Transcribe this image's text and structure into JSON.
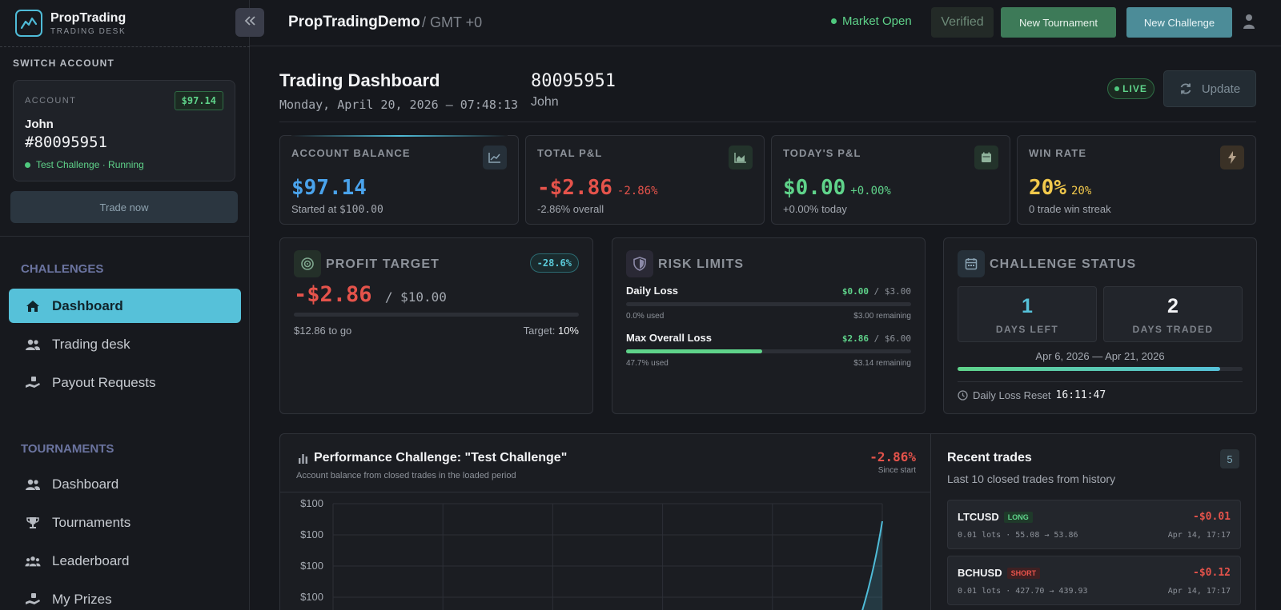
{
  "brand": {
    "name": "PropTrading",
    "subtitle": "TRADING DESK"
  },
  "sidebar": {
    "switch_label": "SWITCH ACCOUNT",
    "account": {
      "label": "ACCOUNT",
      "balance_badge": "$97.14",
      "name": "John",
      "id": "#80095951",
      "status": "Test Challenge · Running"
    },
    "trade_now": "Trade now",
    "challenges_label": "CHALLENGES",
    "challenges_items": [
      {
        "label": "Dashboard",
        "icon": "home-icon",
        "active": true
      },
      {
        "label": "Trading desk",
        "icon": "users-icon",
        "active": false
      },
      {
        "label": "Payout Requests",
        "icon": "payout-icon",
        "active": false
      }
    ],
    "tournaments_label": "TOURNAMENTS",
    "tournaments_items": [
      {
        "label": "Dashboard",
        "icon": "users-icon"
      },
      {
        "label": "Tournaments",
        "icon": "trophy-icon"
      },
      {
        "label": "Leaderboard",
        "icon": "group-icon"
      },
      {
        "label": "My Prizes",
        "icon": "prize-icon"
      }
    ]
  },
  "topbar": {
    "title": "PropTradingDemo",
    "timezone": "/ GMT +0",
    "market_status": "Market Open",
    "verified": "Verified",
    "new_tournament": "New Tournament",
    "new_challenge": "New Challenge"
  },
  "header": {
    "title": "Trading Dashboard",
    "datetime": "Monday, April 20, 2026 — 07:48:13",
    "account_id": "80095951",
    "account_name": "John",
    "live": "LIVE",
    "update": "Update"
  },
  "stats": [
    {
      "label": "ACCOUNT BALANCE",
      "value": "$97.14",
      "delta": "",
      "sub_prefix": "Started at ",
      "sub_value": "$100.00",
      "color": "#4aa3ec",
      "icon": "chart-up-icon"
    },
    {
      "label": "TOTAL P&L",
      "value": "-$2.86",
      "delta": "-2.86%",
      "sub_prefix": "",
      "sub_value": "-2.86% overall",
      "color": "#e5534b",
      "icon": "area-chart-icon"
    },
    {
      "label": "TODAY'S P&L",
      "value": "$0.00",
      "delta": "+0.00%",
      "sub_prefix": "",
      "sub_value": "+0.00% today",
      "color": "#5fd38a",
      "icon": "calendar-icon"
    },
    {
      "label": "WIN RATE",
      "value": "20%",
      "delta": "20%",
      "sub_prefix": "",
      "sub_value": "0 trade win streak",
      "color": "#f2c94c",
      "icon": "bolt-icon"
    }
  ],
  "profit_target": {
    "title": "PROFIT TARGET",
    "pct": "-28.6%",
    "value": "-$2.86",
    "target_amount": "/ $10.00",
    "to_go": "$12.86 to go",
    "target_label": "Target: ",
    "target_pct": "10%",
    "progress": 0
  },
  "risk_limits": {
    "title": "RISK LIMITS",
    "rows": [
      {
        "label": "Daily Loss",
        "used_value": "$0.00",
        "limit": " / $3.00",
        "used_text": "0.0% used",
        "remaining": "$3.00 remaining",
        "progress": 0.0
      },
      {
        "label": "Max Overall Loss",
        "used_value": "$2.86",
        "limit": " / $6.00",
        "used_text": "47.7% used",
        "remaining": "$3.14 remaining",
        "progress": 0.477
      }
    ]
  },
  "challenge_status": {
    "title": "CHALLENGE STATUS",
    "days_left": "1",
    "days_left_label": "DAYS LEFT",
    "days_traded": "2",
    "days_traded_label": "DAYS TRADED",
    "dates": "Apr 6, 2026 — Apr 21, 2026",
    "progress": 0.92,
    "reset_label": "Daily Loss Reset",
    "reset_time": "16:11:47"
  },
  "performance": {
    "title": "Performance Challenge: \"Test Challenge\"",
    "subtitle": "Account balance from closed trades in the loaded period",
    "pct": "-2.86%",
    "since": "Since start"
  },
  "chart_data": {
    "type": "area",
    "title": "Performance Challenge: \"Test Challenge\"",
    "y_tick_labels": [
      "$100",
      "$100",
      "$100",
      "$100"
    ],
    "grid": true,
    "series_color": "#4fbcd8"
  },
  "recent_trades": {
    "title": "Recent trades",
    "subtitle": "Last 10 closed trades from history",
    "count": "5",
    "trades": [
      {
        "symbol": "LTCUSD",
        "direction": "LONG",
        "pnl": "-$0.01",
        "detail": "0.01 lots · 55.08 → 53.86",
        "time": "Apr 14, 17:17"
      },
      {
        "symbol": "BCHUSD",
        "direction": "SHORT",
        "pnl": "-$0.12",
        "detail": "0.01 lots · 427.70 → 439.93",
        "time": "Apr 14, 17:17"
      }
    ]
  }
}
